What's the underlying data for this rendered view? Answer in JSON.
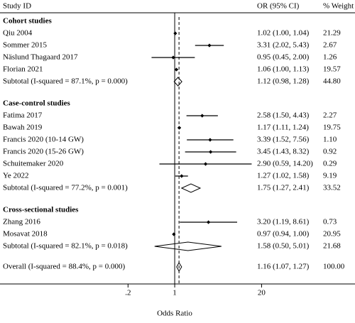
{
  "chart_data": {
    "type": "forest",
    "columns": [
      "Study ID",
      "OR (95% CI)",
      "% Weight"
    ],
    "x_label": "Odds Ratio",
    "log_scale": true,
    "xlim": [
      0.1,
      30
    ],
    "xticks": [
      {
        "value": 0.2,
        "label": ".2"
      },
      1,
      20
    ],
    "null_line": 1,
    "groups": [
      {
        "name": "Cohort studies",
        "studies": [
          {
            "label": "Qiu 2004",
            "or": 1.02,
            "lo": 1.0,
            "hi": 1.04,
            "or_text": "1.02 (1.00, 1.04)",
            "weight": "21.29"
          },
          {
            "label": "Sommer 2015",
            "or": 3.31,
            "lo": 2.02,
            "hi": 5.43,
            "or_text": "3.31 (2.02, 5.43)",
            "weight": "2.67"
          },
          {
            "label": "Näslund Thagaard 2017",
            "or": 0.95,
            "lo": 0.45,
            "hi": 2.0,
            "or_text": "0.95 (0.45, 2.00)",
            "weight": "1.26"
          },
          {
            "label": "Florian 2021",
            "or": 1.06,
            "lo": 1.0,
            "hi": 1.13,
            "or_text": "1.06 (1.00, 1.13)",
            "weight": "19.57"
          }
        ],
        "subtotal": {
          "label": "Subtotal (I-squared = 87.1%, p = 0.000)",
          "or": 1.12,
          "lo": 0.98,
          "hi": 1.28,
          "or_text": "1.12 (0.98, 1.28)",
          "weight": "44.80"
        }
      },
      {
        "name": "Case-control studies",
        "studies": [
          {
            "label": "Fatima 2017",
            "or": 2.58,
            "lo": 1.5,
            "hi": 4.43,
            "or_text": "2.58 (1.50, 4.43)",
            "weight": "2.27"
          },
          {
            "label": "Bawah 2019",
            "or": 1.17,
            "lo": 1.11,
            "hi": 1.24,
            "or_text": "1.17 (1.11, 1.24)",
            "weight": "19.75"
          },
          {
            "label": "Francis 2020 (10-14 GW)",
            "or": 3.39,
            "lo": 1.52,
            "hi": 7.56,
            "or_text": "3.39 (1.52, 7.56)",
            "weight": "1.10"
          },
          {
            "label": "Francis 2020 (15-26 GW)",
            "or": 3.45,
            "lo": 1.43,
            "hi": 8.32,
            "or_text": "3.45 (1.43, 8.32)",
            "weight": "0.92"
          },
          {
            "label": "Schuitemaker 2020",
            "or": 2.9,
            "lo": 0.59,
            "hi": 14.2,
            "or_text": "2.90 (0.59, 14.20)",
            "weight": "0.29"
          },
          {
            "label": "Ye 2022",
            "or": 1.27,
            "lo": 1.02,
            "hi": 1.58,
            "or_text": "1.27 (1.02, 1.58)",
            "weight": "9.19"
          }
        ],
        "subtotal": {
          "label": "Subtotal (I-squared = 77.2%, p = 0.001)",
          "or": 1.75,
          "lo": 1.27,
          "hi": 2.41,
          "or_text": "1.75 (1.27, 2.41)",
          "weight": "33.52"
        }
      },
      {
        "name": "Cross-sectional studies",
        "studies": [
          {
            "label": "Zhang 2016",
            "or": 3.2,
            "lo": 1.19,
            "hi": 8.61,
            "or_text": "3.20 (1.19, 8.61)",
            "weight": "0.73"
          },
          {
            "label": "Mosavat 2018",
            "or": 0.97,
            "lo": 0.94,
            "hi": 1.0,
            "or_text": "0.97 (0.94, 1.00)",
            "weight": "20.95"
          }
        ],
        "subtotal": {
          "label": "Subtotal (I-squared = 82.1%, p = 0.018)",
          "or": 1.58,
          "lo": 0.5,
          "hi": 5.01,
          "or_text": "1.58 (0.50, 5.01)",
          "weight": "21.68"
        }
      }
    ],
    "overall": {
      "label": "Overall (I-squared = 88.4%, p = 0.000)",
      "or": 1.16,
      "lo": 1.07,
      "hi": 1.27,
      "or_text": "1.16 (1.07, 1.27)",
      "weight": "100.00"
    }
  }
}
